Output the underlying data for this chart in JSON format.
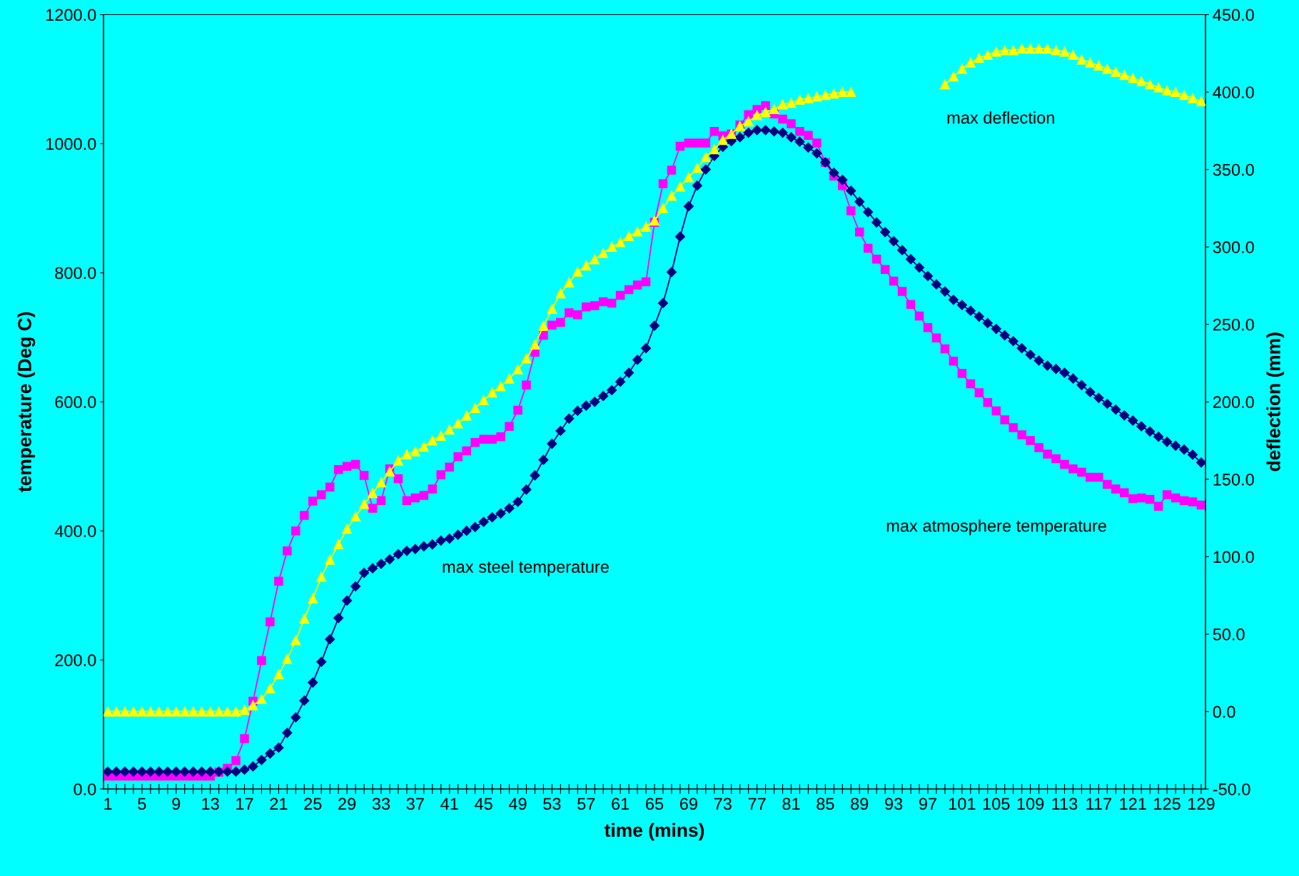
{
  "chart_data": {
    "type": "line",
    "xlabel": "time (mins)",
    "ylabel": "temperature (Deg C)",
    "y2label": "deflection (mm)",
    "categories": [
      "1",
      null,
      null,
      null,
      "5",
      null,
      null,
      null,
      "9",
      null,
      null,
      null,
      "13",
      null,
      null,
      null,
      "17",
      null,
      null,
      null,
      "21",
      null,
      null,
      null,
      "25",
      null,
      null,
      null,
      "29",
      null,
      null,
      null,
      "33",
      null,
      null,
      null,
      "37",
      null,
      null,
      null,
      "41",
      null,
      null,
      null,
      "45",
      null,
      null,
      null,
      "49",
      null,
      null,
      null,
      "53",
      null,
      null,
      null,
      "57",
      null,
      null,
      null,
      "61",
      null,
      null,
      null,
      "65",
      null,
      null,
      null,
      "69",
      null,
      null,
      null,
      "73",
      null,
      null,
      null,
      "77",
      null,
      null,
      null,
      "81",
      null,
      null,
      null,
      "85",
      null,
      null,
      null,
      "89",
      null,
      null,
      null,
      "93",
      null,
      null,
      null,
      "97",
      null,
      null,
      null,
      "101",
      null,
      null,
      null,
      "105",
      null,
      null,
      null,
      "109",
      null,
      null,
      null,
      "113",
      null,
      null,
      null,
      "117",
      null,
      null,
      null,
      "121",
      null,
      null,
      null,
      "125",
      null,
      null,
      null,
      "129"
    ],
    "series": [
      {
        "name": "max steel temperature",
        "color": "#000080",
        "marker": "diamond",
        "values": [
          27,
          27,
          27,
          27,
          27,
          27,
          27,
          27,
          27,
          27,
          27,
          27,
          27,
          27,
          27,
          27,
          30,
          35,
          45,
          55,
          64,
          87,
          111,
          137,
          165,
          197,
          232,
          265,
          292,
          314,
          335,
          342,
          349,
          356,
          364,
          369,
          372,
          376,
          379,
          385,
          388,
          394,
          400,
          406,
          414,
          421,
          427,
          435,
          445,
          464,
          486,
          510,
          535,
          555,
          574,
          586,
          594,
          600,
          609,
          618,
          631,
          645,
          665,
          683,
          718,
          753,
          801,
          856,
          903,
          935,
          960,
          981,
          995,
          1004,
          1010,
          1017,
          1021,
          1021,
          1019,
          1017,
          1010,
          1003,
          994,
          985,
          971,
          955,
          944,
          927,
          910,
          894,
          878,
          863,
          849,
          835,
          821,
          808,
          795,
          782,
          771,
          758,
          750,
          741,
          732,
          722,
          713,
          703,
          694,
          683,
          673,
          664,
          656,
          651,
          645,
          636,
          626,
          615,
          606,
          597,
          588,
          579,
          571,
          562,
          554,
          546,
          538,
          532,
          526,
          518,
          506
        ]
      },
      {
        "name": "max atmosphere temperature",
        "color": "#ff00ff",
        "marker": "square",
        "values": [
          20,
          20,
          20,
          20,
          20,
          20,
          20,
          20,
          20,
          20,
          20,
          20,
          20,
          26,
          32,
          44,
          78,
          136,
          199,
          259,
          322,
          369,
          400,
          424,
          446,
          456,
          468,
          495,
          500,
          503,
          486,
          435,
          447,
          496,
          481,
          447,
          451,
          455,
          465,
          487,
          499,
          515,
          524,
          537,
          542,
          542,
          546,
          562,
          587,
          626,
          677,
          703,
          719,
          723,
          738,
          735,
          747,
          749,
          755,
          753,
          765,
          774,
          781,
          786,
          878,
          938,
          959,
          996,
          1001,
          1001,
          1001,
          1019,
          1012,
          1015,
          1029,
          1045,
          1053,
          1059,
          1046,
          1038,
          1031,
          1019,
          1013,
          1001,
          971,
          950,
          935,
          896,
          863,
          838,
          821,
          805,
          787,
          771,
          751,
          733,
          715,
          699,
          682,
          663,
          644,
          628,
          614,
          599,
          586,
          572,
          560,
          549,
          540,
          529,
          519,
          512,
          503,
          496,
          491,
          483,
          483,
          472,
          465,
          459,
          450,
          451,
          449,
          438,
          456,
          451,
          447,
          445,
          440
        ]
      },
      {
        "name": "max deflection",
        "color": "#ffff00",
        "marker": "triangle",
        "axis": "y2",
        "values": [
          0,
          0,
          0,
          0,
          0,
          0,
          0,
          0,
          0,
          0,
          0,
          0,
          0,
          0,
          0,
          0,
          1,
          4,
          8,
          15,
          24,
          34,
          46,
          60,
          73,
          87,
          98,
          108,
          118,
          126,
          134,
          141,
          148,
          155,
          162,
          166,
          168,
          171,
          175,
          178,
          182,
          186,
          191,
          196,
          201,
          206,
          210,
          215,
          221,
          228,
          237,
          249,
          260,
          270,
          277,
          284,
          288,
          292,
          296,
          300,
          303,
          307,
          310,
          313,
          317,
          325,
          333,
          339,
          345,
          351,
          358,
          363,
          369,
          373,
          378,
          381,
          385,
          387,
          389,
          392,
          393,
          395,
          396,
          397,
          398,
          399,
          400,
          400,
          null,
          null,
          null,
          null,
          null,
          null,
          null,
          null,
          null,
          null,
          405,
          410,
          415,
          419,
          422,
          424,
          426,
          427,
          427,
          428,
          428,
          428,
          428,
          427,
          426,
          424,
          421,
          419,
          417,
          415,
          413,
          411,
          409,
          407,
          405,
          403,
          401,
          400,
          398,
          396,
          394
        ]
      }
    ],
    "ylim": [
      0,
      1200
    ],
    "yticks": [
      {
        "value": 0,
        "label": "0.0"
      },
      {
        "value": 200,
        "label": "200.0"
      },
      {
        "value": 400,
        "label": "400.0"
      },
      {
        "value": 600,
        "label": "600.0"
      },
      {
        "value": 800,
        "label": "800.0"
      },
      {
        "value": 1000,
        "label": "1000.0"
      },
      {
        "value": 1200,
        "label": "1200.0"
      }
    ],
    "y2lim": [
      -50,
      450
    ],
    "y2ticks": [
      {
        "value": -50,
        "label": "-50.0"
      },
      {
        "value": 0,
        "label": "0.0"
      },
      {
        "value": 50,
        "label": "50.0"
      },
      {
        "value": 100,
        "label": "100.0"
      },
      {
        "value": 150,
        "label": "150.0"
      },
      {
        "value": 200,
        "label": "200.0"
      },
      {
        "value": 250,
        "label": "250.0"
      },
      {
        "value": 300,
        "label": "300.0"
      },
      {
        "value": 350,
        "label": "350.0"
      },
      {
        "value": 400,
        "label": "400.0"
      },
      {
        "value": 450,
        "label": "450.0"
      }
    ],
    "grid": false,
    "legend": false,
    "line_style": "solid"
  }
}
